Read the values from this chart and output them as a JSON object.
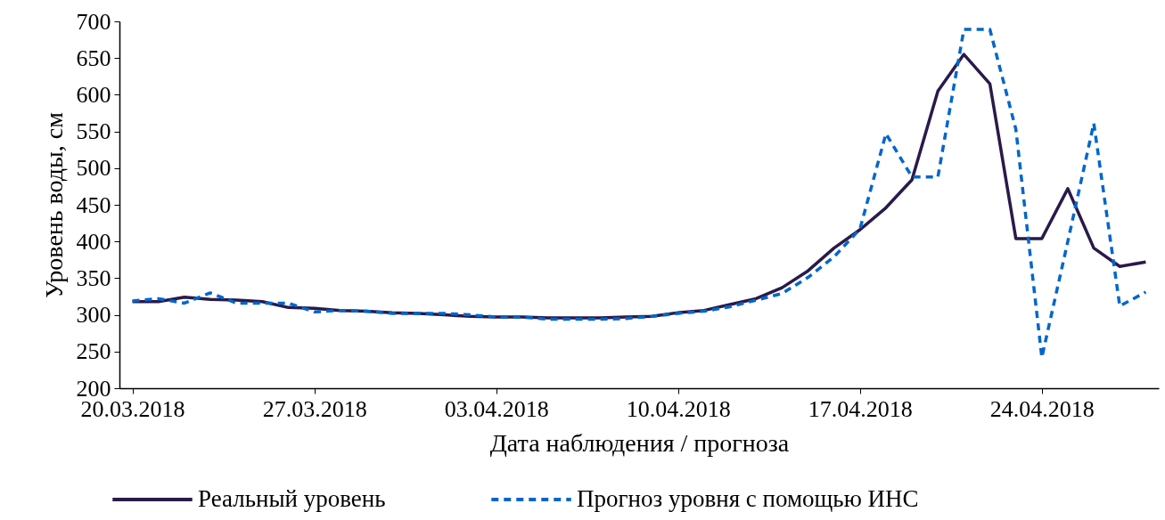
{
  "chart_data": {
    "type": "line",
    "xlabel": "Дата наблюдения / прогноза",
    "ylabel": "Уровень воды, см",
    "x": [
      "2018-03-20",
      "2018-03-21",
      "2018-03-22",
      "2018-03-23",
      "2018-03-24",
      "2018-03-25",
      "2018-03-26",
      "2018-03-27",
      "2018-03-28",
      "2018-03-29",
      "2018-03-30",
      "2018-03-31",
      "2018-04-01",
      "2018-04-02",
      "2018-04-03",
      "2018-04-04",
      "2018-04-05",
      "2018-04-06",
      "2018-04-07",
      "2018-04-08",
      "2018-04-09",
      "2018-04-10",
      "2018-04-11",
      "2018-04-12",
      "2018-04-13",
      "2018-04-14",
      "2018-04-15",
      "2018-04-16",
      "2018-04-17",
      "2018-04-18",
      "2018-04-19",
      "2018-04-20",
      "2018-04-21",
      "2018-04-22",
      "2018-04-23",
      "2018-04-24",
      "2018-04-25",
      "2018-04-26",
      "2018-04-27",
      "2018-04-28"
    ],
    "series": [
      {
        "name": "Реальный уровень",
        "color": "#2a1a4a",
        "line_style": "solid",
        "values": [
          318,
          318,
          324,
          321,
          320,
          318,
          310,
          309,
          306,
          305,
          303,
          302,
          300,
          298,
          297,
          297,
          296,
          296,
          296,
          297,
          298,
          303,
          306,
          314,
          322,
          337,
          360,
          391,
          416,
          446,
          484,
          605,
          655,
          615,
          404,
          404,
          472,
          391,
          366,
          372
        ]
      },
      {
        "name": "Прогноз уровня с помощью ИНС",
        "color": "#0066cc",
        "line_style": "dashed",
        "values": [
          319,
          322,
          316,
          330,
          316,
          316,
          316,
          304,
          306,
          305,
          302,
          302,
          302,
          300,
          297,
          297,
          294,
          294,
          294,
          295,
          298,
          302,
          305,
          311,
          320,
          329,
          351,
          379,
          417,
          547,
          488,
          488,
          689,
          689,
          553,
          242,
          400,
          561,
          312,
          331
        ]
      }
    ],
    "xlim": [
      "2018-03-19T12:00",
      "2018-04-28T12:00"
    ],
    "xticks": [
      {
        "value": "2018-03-20",
        "label": "20.03.2018"
      },
      {
        "value": "2018-03-27",
        "label": "27.03.2018"
      },
      {
        "value": "2018-04-03",
        "label": "03.04.2018"
      },
      {
        "value": "2018-04-10",
        "label": "10.04.2018"
      },
      {
        "value": "2018-04-17",
        "label": "17.04.2018"
      },
      {
        "value": "2018-04-24",
        "label": "24.04.2018"
      }
    ],
    "ylim": [
      200,
      700
    ],
    "yticks": [
      200,
      250,
      300,
      350,
      400,
      450,
      500,
      550,
      600,
      650,
      700
    ],
    "grid": false,
    "legend": "bottom"
  }
}
